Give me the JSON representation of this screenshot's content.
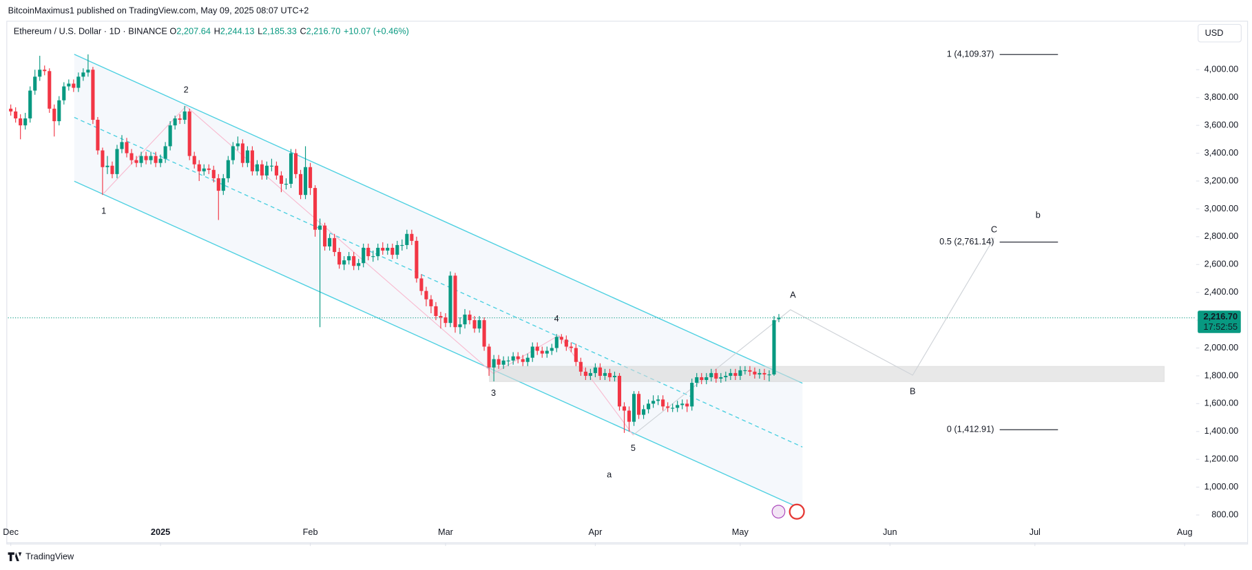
{
  "header": {
    "published": "BitcoinMaximus1 published on TradingView.com, May 09, 2025 08:07 UTC+2",
    "brand": "TradingView",
    "currency_button": "USD"
  },
  "chart_data": {
    "type": "candlestick",
    "symbol": "Ethereum / U.S. Dollar · 1D · BINANCE",
    "quote": [
      {
        "key": "O",
        "value": "2,207.64"
      },
      {
        "key": "H",
        "value": "2,244.13"
      },
      {
        "key": "L",
        "value": "2,185.33"
      },
      {
        "key": "C",
        "value": "2,216.70"
      }
    ],
    "change": "+10.07 (+0.46%)",
    "last_price": {
      "value": 2216.7,
      "label": "2,216.70"
    },
    "countdown": "17:52:55",
    "up_color": "#089981",
    "down_color": "#f23645",
    "ylim": [
      600,
      4340
    ],
    "yticks": [
      {
        "value": 800,
        "label": "800.00"
      },
      {
        "value": 1000,
        "label": "1,000.00"
      },
      {
        "value": 1200,
        "label": "1,200.00"
      },
      {
        "value": 1400,
        "label": "1,400.00"
      },
      {
        "value": 1600,
        "label": "1,600.00"
      },
      {
        "value": 1800,
        "label": "1,800.00"
      },
      {
        "value": 2000,
        "label": "2,000.00"
      },
      {
        "value": 2200,
        "label": "2,200.00"
      },
      {
        "value": 2400,
        "label": "2,400.00"
      },
      {
        "value": 2600,
        "label": "2,600.00"
      },
      {
        "value": 2800,
        "label": "2,800.00"
      },
      {
        "value": 3000,
        "label": "3,000.00"
      },
      {
        "value": 3200,
        "label": "3,200.00"
      },
      {
        "value": 3400,
        "label": "3,400.00"
      },
      {
        "value": 3600,
        "label": "3,600.00"
      },
      {
        "value": 3800,
        "label": "3,800.00"
      },
      {
        "value": 4000,
        "label": "4,000.00"
      }
    ],
    "xticks": [
      {
        "value": 0,
        "label": "Dec"
      },
      {
        "value": 31,
        "label": "2025"
      },
      {
        "value": 62,
        "label": "Feb"
      },
      {
        "value": 90,
        "label": "Mar"
      },
      {
        "value": 121,
        "label": "Apr"
      },
      {
        "value": 151,
        "label": "May"
      },
      {
        "value": 182,
        "label": "Jun"
      },
      {
        "value": 212,
        "label": "Jul"
      },
      {
        "value": 243,
        "label": "Aug"
      }
    ],
    "fib_levels": [
      {
        "value": 4109.37,
        "label": "1 (4,109.37)"
      },
      {
        "value": 2761.14,
        "label": "0.5 (2,761.14)"
      },
      {
        "value": 1412.91,
        "label": "0 (1,412.91)"
      }
    ],
    "wave_labels": [
      "1",
      "2",
      "3",
      "4",
      "5",
      "a",
      "A",
      "B",
      "C",
      "b"
    ],
    "open": [
      3720,
      3700,
      3650,
      3600,
      3650,
      3850,
      3950,
      4000,
      3990,
      3720,
      3630,
      3780,
      3880,
      3900,
      3870,
      3950,
      3980,
      4000,
      3640,
      3420,
      3300,
      3310,
      3250,
      3430,
      3480,
      3400,
      3350,
      3330,
      3380,
      3350,
      3380,
      3330,
      3360,
      3450,
      3600,
      3650,
      3640,
      3700,
      3380,
      3320,
      3270,
      3290,
      3280,
      3220,
      3130,
      3220,
      3350,
      3450,
      3470,
      3330,
      3420,
      3270,
      3320,
      3240,
      3310,
      3310,
      3240,
      3180,
      3180,
      3400,
      3250,
      3100,
      3300,
      3150,
      2850,
      2880,
      2730,
      2790,
      2690,
      2600,
      2630,
      2660,
      2590,
      2610,
      2720,
      2660,
      2660,
      2720,
      2700,
      2720,
      2670,
      2740,
      2740,
      2820,
      2770,
      2500,
      2410,
      2350,
      2300,
      2230,
      2220,
      2180,
      2520,
      2150,
      2170,
      2240,
      2200,
      2140,
      2200,
      2010,
      1860,
      1920,
      1880,
      1910,
      1910,
      1940,
      1920,
      1900,
      1930,
      2010,
      1980,
      1960,
      1980,
      2000,
      2080,
      2060,
      2010,
      2000,
      1900,
      1830,
      1800,
      1820,
      1860,
      1800,
      1820,
      1790,
      1800,
      1580,
      1550,
      1470,
      1670,
      1520,
      1560,
      1600,
      1620,
      1630,
      1580,
      1570,
      1570,
      1590,
      1600,
      1580,
      1750,
      1790,
      1770,
      1790,
      1820,
      1780,
      1790,
      1800,
      1820,
      1800,
      1840,
      1840,
      1830,
      1810,
      1820,
      1810,
      1810,
      2207.64
    ],
    "high": [
      3750,
      3730,
      3680,
      3690,
      3880,
      4000,
      4100,
      4030,
      4010,
      3750,
      3810,
      3910,
      3930,
      3930,
      3980,
      4010,
      4110,
      4020,
      3660,
      3440,
      3380,
      3340,
      3460,
      3530,
      3510,
      3430,
      3380,
      3410,
      3410,
      3410,
      3410,
      3390,
      3480,
      3630,
      3670,
      3680,
      3740,
      3720,
      3410,
      3350,
      3320,
      3320,
      3310,
      3250,
      3250,
      3380,
      3480,
      3520,
      3500,
      3450,
      3450,
      3350,
      3350,
      3340,
      3360,
      3340,
      3270,
      3220,
      3430,
      3430,
      3280,
      3450,
      3330,
      3170,
      2930,
      2900,
      2820,
      2820,
      2720,
      2660,
      2690,
      2690,
      2640,
      2750,
      2750,
      2700,
      2750,
      2760,
      2750,
      2750,
      2770,
      2780,
      2850,
      2850,
      2800,
      2530,
      2440,
      2380,
      2330,
      2260,
      2250,
      2550,
      2540,
      2220,
      2280,
      2270,
      2230,
      2230,
      2220,
      2030,
      1950,
      1950,
      1940,
      1940,
      1970,
      1970,
      1950,
      1960,
      2040,
      2040,
      2010,
      2010,
      2030,
      2100,
      2100,
      2090,
      2040,
      2030,
      1930,
      1860,
      1850,
      1890,
      1890,
      1850,
      1850,
      1830,
      1820,
      1610,
      1580,
      1690,
      1690,
      1590,
      1630,
      1660,
      1660,
      1660,
      1610,
      1600,
      1620,
      1630,
      1630,
      1780,
      1820,
      1820,
      1820,
      1850,
      1850,
      1820,
      1830,
      1850,
      1850,
      1870,
      1870,
      1870,
      1860,
      1850,
      1850,
      1840,
      2230,
      2244.13
    ],
    "low": [
      3670,
      3620,
      3500,
      3570,
      3620,
      3820,
      3920,
      3960,
      3690,
      3520,
      3600,
      3750,
      3850,
      3840,
      3840,
      3920,
      3950,
      3610,
      3390,
      3100,
      3250,
      3220,
      3220,
      3400,
      3370,
      3320,
      3300,
      3300,
      3320,
      3320,
      3300,
      3300,
      3330,
      3420,
      3570,
      3610,
      3610,
      3350,
      3290,
      3200,
      3240,
      3250,
      3190,
      2920,
      3100,
      3190,
      3320,
      3420,
      3300,
      3300,
      3240,
      3240,
      3210,
      3210,
      3270,
      3210,
      3120,
      3140,
      3150,
      3220,
      3070,
      3070,
      3100,
      2800,
      2150,
      2700,
      2700,
      2660,
      2570,
      2560,
      2600,
      2560,
      2560,
      2580,
      2630,
      2620,
      2630,
      2670,
      2670,
      2640,
      2640,
      2700,
      2710,
      2740,
      2470,
      2380,
      2300,
      2250,
      2200,
      2140,
      2150,
      2150,
      2110,
      2100,
      2140,
      2170,
      2110,
      2110,
      1980,
      1800,
      1760,
      1850,
      1850,
      1870,
      1880,
      1890,
      1870,
      1870,
      1900,
      1950,
      1930,
      1930,
      1950,
      1970,
      2030,
      1980,
      1970,
      1870,
      1800,
      1770,
      1770,
      1790,
      1770,
      1770,
      1760,
      1760,
      1550,
      1390,
      1400,
      1440,
      1490,
      1490,
      1530,
      1570,
      1590,
      1550,
      1540,
      1540,
      1540,
      1560,
      1540,
      1550,
      1720,
      1740,
      1740,
      1760,
      1750,
      1750,
      1760,
      1770,
      1770,
      1770,
      1810,
      1800,
      1780,
      1780,
      1770,
      1760,
      1800,
      2185.33
    ],
    "close": [
      3700,
      3650,
      3600,
      3650,
      3850,
      3950,
      4000,
      3990,
      3720,
      3630,
      3780,
      3880,
      3900,
      3870,
      3950,
      3980,
      4000,
      3640,
      3420,
      3300,
      3310,
      3250,
      3430,
      3480,
      3400,
      3350,
      3330,
      3380,
      3350,
      3380,
      3330,
      3360,
      3450,
      3600,
      3650,
      3640,
      3700,
      3380,
      3320,
      3270,
      3290,
      3280,
      3220,
      3130,
      3220,
      3350,
      3450,
      3470,
      3330,
      3420,
      3270,
      3320,
      3240,
      3310,
      3310,
      3240,
      3180,
      3180,
      3400,
      3250,
      3100,
      3300,
      3150,
      2850,
      2880,
      2730,
      2790,
      2690,
      2600,
      2630,
      2660,
      2590,
      2610,
      2720,
      2660,
      2660,
      2720,
      2700,
      2720,
      2670,
      2740,
      2740,
      2820,
      2770,
      2500,
      2410,
      2350,
      2300,
      2230,
      2220,
      2180,
      2520,
      2150,
      2170,
      2240,
      2200,
      2140,
      2200,
      2010,
      1860,
      1920,
      1880,
      1910,
      1910,
      1940,
      1920,
      1900,
      1930,
      2010,
      1980,
      1960,
      1980,
      2000,
      2080,
      2060,
      2010,
      2000,
      1900,
      1830,
      1800,
      1820,
      1860,
      1800,
      1820,
      1790,
      1800,
      1580,
      1550,
      1470,
      1670,
      1520,
      1560,
      1600,
      1620,
      1630,
      1580,
      1570,
      1570,
      1590,
      1600,
      1580,
      1750,
      1790,
      1770,
      1790,
      1820,
      1780,
      1790,
      1800,
      1820,
      1800,
      1840,
      1840,
      1830,
      1810,
      1820,
      1810,
      1810,
      2200,
      2216.7
    ]
  }
}
